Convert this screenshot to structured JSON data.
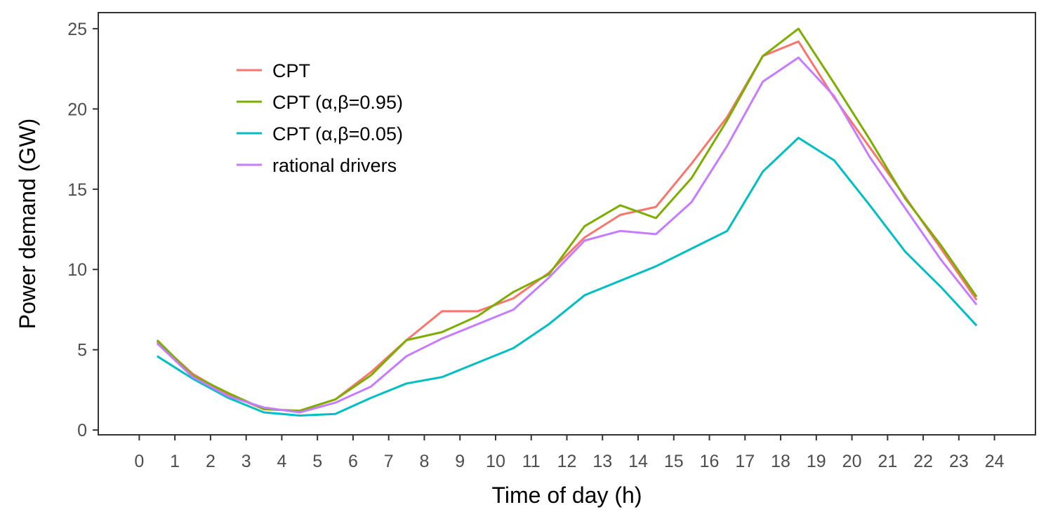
{
  "chart_data": {
    "type": "line",
    "title": "",
    "xlabel": "Time of day (h)",
    "ylabel": "Power demand (GW)",
    "xlim": [
      -1.15,
      25.15
    ],
    "ylim": [
      -0.3,
      26.0
    ],
    "xticks": [
      0,
      1,
      2,
      3,
      4,
      5,
      6,
      7,
      8,
      9,
      10,
      11,
      12,
      13,
      14,
      15,
      16,
      17,
      18,
      19,
      20,
      21,
      22,
      23,
      24
    ],
    "yticks": [
      0,
      5,
      10,
      15,
      20,
      25
    ],
    "grid": false,
    "legend_position": "top-left",
    "x": [
      0.5,
      1.5,
      2.5,
      3.5,
      4.5,
      5.5,
      6.5,
      7.5,
      8.5,
      9.5,
      10.5,
      11.5,
      12.5,
      13.5,
      14.5,
      15.5,
      16.5,
      17.5,
      18.5,
      19.5,
      20.5,
      21.5,
      22.5,
      23.5
    ],
    "series": [
      {
        "name": "CPT",
        "color": "#F8766D",
        "values": [
          5.5,
          3.5,
          2.2,
          1.3,
          1.2,
          1.9,
          3.6,
          5.6,
          7.4,
          7.4,
          8.2,
          9.8,
          12.0,
          13.4,
          13.9,
          16.6,
          19.5,
          23.3,
          24.2,
          20.7,
          17.6,
          14.5,
          11.3,
          8.1
        ]
      },
      {
        "name": "CPT (α,β=0.95)",
        "color": "#7CAE00",
        "values": [
          5.6,
          3.4,
          2.3,
          1.3,
          1.2,
          1.9,
          3.4,
          5.6,
          6.1,
          7.1,
          8.6,
          9.7,
          12.7,
          14.0,
          13.2,
          15.7,
          19.3,
          23.3,
          25.0,
          21.6,
          18.1,
          14.4,
          11.5,
          8.3
        ]
      },
      {
        "name": "CPT (α,β=0.05)",
        "color": "#00BFC4",
        "values": [
          4.6,
          3.2,
          2.0,
          1.1,
          0.9,
          1.0,
          2.0,
          2.9,
          3.3,
          4.2,
          5.1,
          6.6,
          8.4,
          9.3,
          10.2,
          11.3,
          12.4,
          16.1,
          18.2,
          16.8,
          14.0,
          11.1,
          8.9,
          6.5
        ]
      },
      {
        "name": "rational drivers",
        "color": "#C77CFF",
        "values": [
          5.4,
          3.3,
          2.1,
          1.4,
          1.1,
          1.7,
          2.7,
          4.6,
          5.7,
          6.6,
          7.5,
          9.5,
          11.8,
          12.4,
          12.2,
          14.2,
          17.7,
          21.7,
          23.2,
          20.8,
          17.0,
          13.8,
          10.6,
          7.8
        ]
      }
    ]
  }
}
